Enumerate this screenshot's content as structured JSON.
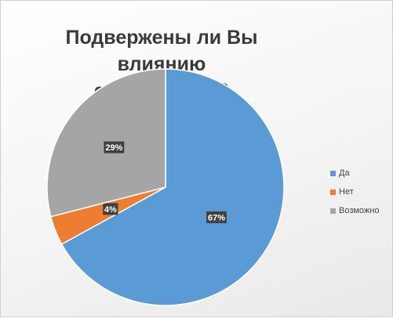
{
  "chart_data": {
    "type": "pie",
    "title_lines": [
      "Подвержены ли Вы влиянию",
      "стереотипов?"
    ],
    "slices": [
      {
        "name": "Да",
        "value": 67,
        "label": "67%",
        "color": "#5b9bd5"
      },
      {
        "name": "Нет",
        "value": 4,
        "label": "4%",
        "color": "#ed7d31"
      },
      {
        "name": "Возможно",
        "value": 29,
        "label": "29%",
        "color": "#a5a5a5"
      }
    ],
    "start_angle": "12 o'clock, clockwise",
    "legend_position": "right"
  }
}
